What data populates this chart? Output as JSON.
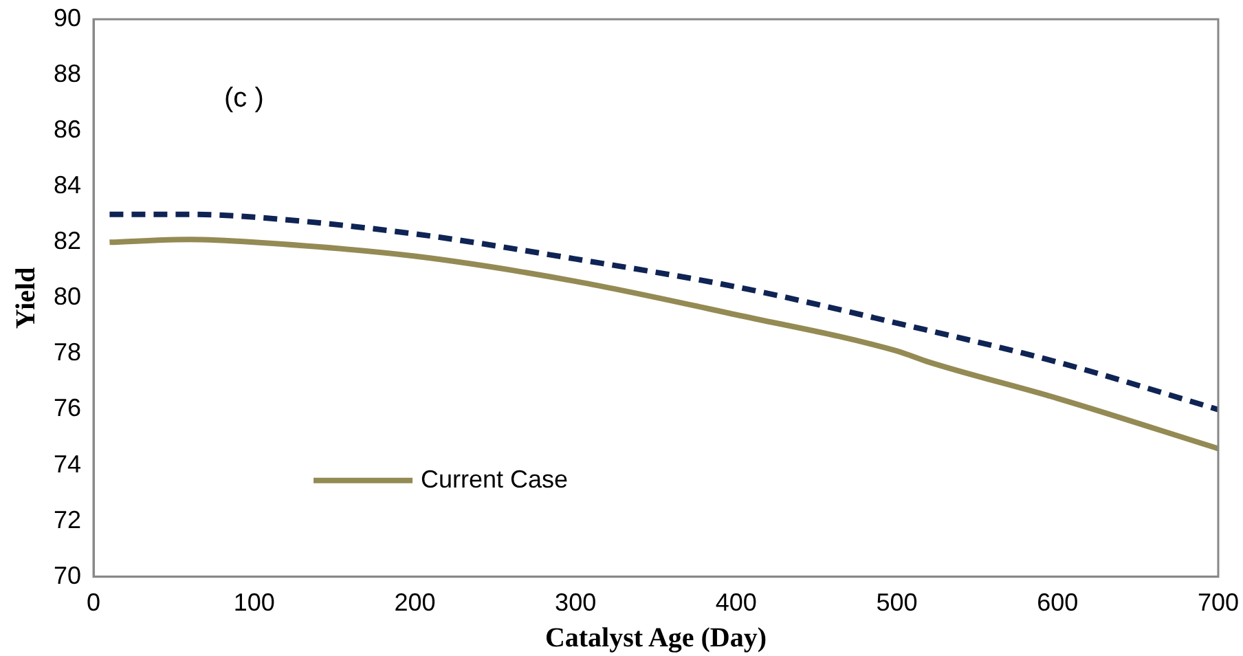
{
  "chart_data": {
    "type": "line",
    "xlabel": "Catalyst Age (Day)",
    "ylabel": "Yield",
    "annotations": [
      "(c )"
    ],
    "xlim": [
      0,
      700
    ],
    "xticks": [
      0,
      100,
      200,
      300,
      400,
      500,
      600,
      700
    ],
    "ylim": [
      70,
      90
    ],
    "yticks": [
      70,
      72,
      74,
      76,
      78,
      80,
      82,
      84,
      86,
      88,
      90
    ],
    "grid": false,
    "legend": "bottom left",
    "marker": "none",
    "series": [
      {
        "name": "Current Case",
        "color": "#948a54",
        "line_style": "solid",
        "x": [
          10,
          60,
          100,
          200,
          300,
          400,
          500,
          520,
          600,
          700
        ],
        "values": [
          82.0,
          82.1,
          82.0,
          81.5,
          80.6,
          79.4,
          78.1,
          77.7,
          76.4,
          74.6
        ]
      },
      {
        "color": "#0f2454",
        "line_style": "dashed",
        "x": [
          10,
          60,
          100,
          200,
          300,
          400,
          500,
          600,
          700
        ],
        "values": [
          83.0,
          83.0,
          82.9,
          82.3,
          81.4,
          80.4,
          79.1,
          77.7,
          76.0
        ]
      }
    ]
  }
}
